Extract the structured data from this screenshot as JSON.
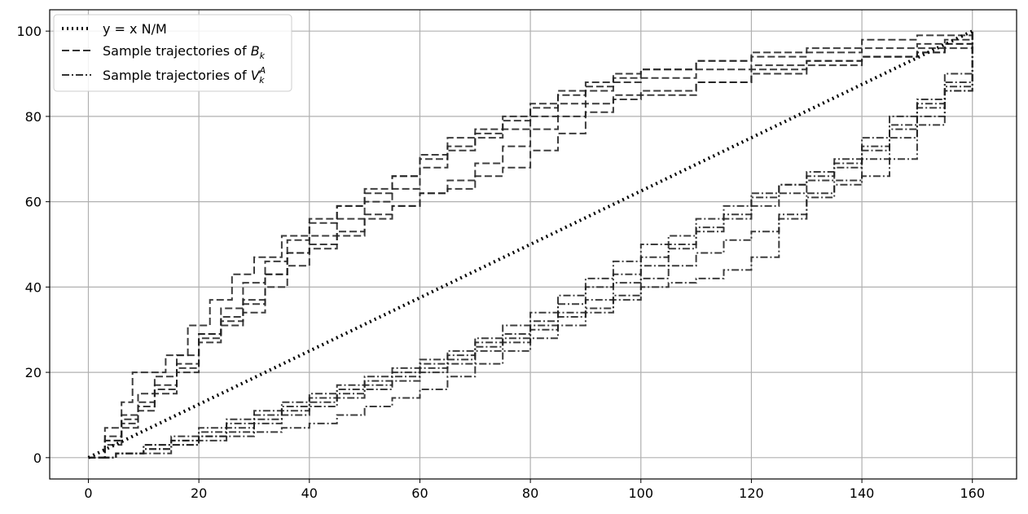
{
  "chart_data": {
    "type": "line",
    "title": "",
    "xlabel": "",
    "ylabel": "",
    "xlim": [
      -7,
      168
    ],
    "ylim": [
      -5,
      105
    ],
    "xticks": [
      0,
      20,
      40,
      60,
      80,
      100,
      120,
      140,
      160
    ],
    "yticks": [
      0,
      20,
      40,
      60,
      80,
      100
    ],
    "grid": true,
    "legend_position": "top-left",
    "line_color": "#000000",
    "grid_color": "#b0b0b0",
    "legend": [
      {
        "label_text": "y = x N/M",
        "style": "dotted"
      },
      {
        "label_text": "Sample trajectories of ",
        "label_math": "B",
        "label_sub": "k",
        "label_sup": "",
        "style": "dashed"
      },
      {
        "label_text": "Sample trajectories of ",
        "label_math": "V",
        "label_sub": "k",
        "label_sup": "A",
        "style": "dashdot"
      }
    ],
    "series": [
      {
        "group": "reference",
        "style": "dotted",
        "x": [
          0,
          160
        ],
        "y": [
          0,
          100
        ]
      },
      {
        "group": "B",
        "style": "dashed",
        "x": [
          0,
          3,
          6,
          8,
          10,
          14,
          18,
          22,
          26,
          30,
          35,
          40,
          45,
          50,
          55,
          60,
          65,
          70,
          75,
          80,
          85,
          90,
          95,
          100,
          110,
          120,
          130,
          140,
          150,
          155,
          160
        ],
        "y": [
          0,
          7,
          13,
          20,
          20,
          24,
          31,
          37,
          43,
          47,
          52,
          55,
          59,
          63,
          66,
          71,
          75,
          77,
          80,
          83,
          86,
          88,
          90,
          91,
          93,
          94,
          95,
          96,
          97,
          98,
          100
        ]
      },
      {
        "group": "B",
        "style": "dashed",
        "x": [
          0,
          3,
          6,
          9,
          12,
          16,
          20,
          24,
          28,
          32,
          36,
          40,
          45,
          50,
          55,
          60,
          65,
          70,
          75,
          80,
          85,
          90,
          95,
          100,
          110,
          120,
          130,
          140,
          150,
          155,
          160
        ],
        "y": [
          0,
          5,
          10,
          15,
          19,
          24,
          29,
          35,
          41,
          46,
          51,
          56,
          59,
          62,
          66,
          70,
          73,
          76,
          79,
          82,
          85,
          87,
          89,
          91,
          93,
          95,
          96,
          98,
          99,
          99,
          100
        ]
      },
      {
        "group": "B",
        "style": "dashed",
        "x": [
          0,
          3,
          6,
          9,
          12,
          16,
          20,
          24,
          28,
          32,
          36,
          40,
          45,
          50,
          55,
          60,
          65,
          70,
          75,
          80,
          85,
          90,
          95,
          100,
          110,
          120,
          130,
          140,
          150,
          155,
          160
        ],
        "y": [
          0,
          4,
          9,
          13,
          17,
          21,
          27,
          32,
          37,
          43,
          48,
          52,
          56,
          60,
          63,
          68,
          72,
          75,
          77,
          80,
          83,
          86,
          88,
          89,
          91,
          92,
          93,
          94,
          95,
          97,
          100
        ]
      },
      {
        "group": "B",
        "style": "dashed",
        "x": [
          0,
          3,
          6,
          9,
          12,
          16,
          20,
          24,
          28,
          32,
          36,
          40,
          45,
          50,
          55,
          60,
          65,
          70,
          75,
          80,
          85,
          90,
          95,
          100,
          110,
          120,
          130,
          140,
          150,
          155,
          160
        ],
        "y": [
          0,
          4,
          8,
          12,
          16,
          22,
          29,
          33,
          36,
          43,
          48,
          50,
          53,
          57,
          59,
          62,
          65,
          69,
          73,
          77,
          80,
          83,
          85,
          86,
          88,
          90,
          92,
          94,
          96,
          97,
          100
        ]
      },
      {
        "group": "B",
        "style": "dashed",
        "x": [
          0,
          3,
          6,
          9,
          12,
          16,
          20,
          24,
          28,
          32,
          36,
          40,
          45,
          50,
          55,
          60,
          65,
          70,
          75,
          80,
          85,
          90,
          95,
          100,
          110,
          120,
          130,
          140,
          150,
          155,
          160
        ],
        "y": [
          0,
          3,
          7,
          11,
          15,
          20,
          28,
          31,
          34,
          40,
          45,
          49,
          52,
          56,
          59,
          62,
          63,
          66,
          68,
          72,
          76,
          81,
          84,
          85,
          88,
          91,
          93,
          94,
          95,
          96,
          100
        ]
      },
      {
        "group": "V",
        "style": "dashdot",
        "x": [
          0,
          5,
          10,
          15,
          20,
          25,
          30,
          35,
          40,
          45,
          50,
          55,
          60,
          65,
          70,
          75,
          80,
          85,
          90,
          95,
          100,
          105,
          110,
          115,
          120,
          125,
          130,
          135,
          140,
          145,
          150,
          155,
          160
        ],
        "y": [
          0,
          1,
          3,
          5,
          7,
          9,
          11,
          13,
          15,
          17,
          19,
          21,
          23,
          25,
          28,
          31,
          34,
          38,
          42,
          46,
          50,
          52,
          56,
          59,
          62,
          64,
          67,
          70,
          75,
          80,
          84,
          90,
          100
        ]
      },
      {
        "group": "V",
        "style": "dashdot",
        "x": [
          0,
          5,
          10,
          15,
          20,
          25,
          30,
          35,
          40,
          45,
          50,
          55,
          60,
          65,
          70,
          75,
          80,
          85,
          90,
          95,
          100,
          105,
          110,
          115,
          120,
          125,
          130,
          135,
          140,
          145,
          150,
          155,
          160
        ],
        "y": [
          0,
          1,
          3,
          4,
          6,
          8,
          10,
          12,
          14,
          16,
          18,
          20,
          22,
          24,
          27,
          29,
          32,
          36,
          40,
          43,
          47,
          50,
          54,
          57,
          61,
          64,
          66,
          69,
          73,
          78,
          83,
          88,
          100
        ]
      },
      {
        "group": "V",
        "style": "dashdot",
        "x": [
          0,
          5,
          10,
          15,
          20,
          25,
          30,
          35,
          40,
          45,
          50,
          55,
          60,
          65,
          70,
          75,
          80,
          85,
          90,
          95,
          100,
          105,
          110,
          115,
          120,
          125,
          130,
          135,
          140,
          145,
          150,
          155,
          160
        ],
        "y": [
          0,
          1,
          2,
          4,
          5,
          7,
          9,
          11,
          13,
          15,
          17,
          19,
          21,
          23,
          26,
          28,
          31,
          34,
          37,
          41,
          45,
          49,
          53,
          56,
          59,
          62,
          65,
          68,
          72,
          77,
          82,
          87,
          100
        ]
      },
      {
        "group": "V",
        "style": "dashdot",
        "x": [
          0,
          5,
          10,
          15,
          20,
          25,
          30,
          35,
          40,
          45,
          50,
          55,
          60,
          65,
          70,
          75,
          80,
          85,
          90,
          95,
          100,
          105,
          110,
          115,
          120,
          125,
          130,
          135,
          140,
          145,
          150,
          155,
          160
        ],
        "y": [
          0,
          1,
          2,
          3,
          5,
          6,
          8,
          10,
          12,
          14,
          16,
          18,
          20,
          22,
          25,
          27,
          30,
          33,
          35,
          38,
          42,
          45,
          48,
          51,
          53,
          57,
          62,
          65,
          70,
          75,
          80,
          86,
          100
        ]
      },
      {
        "group": "V",
        "style": "dashdot",
        "x": [
          0,
          5,
          10,
          15,
          20,
          25,
          30,
          35,
          40,
          45,
          50,
          55,
          60,
          65,
          70,
          75,
          80,
          85,
          90,
          95,
          100,
          105,
          110,
          115,
          120,
          125,
          130,
          135,
          140,
          145,
          150,
          155,
          160
        ],
        "y": [
          0,
          1,
          1,
          3,
          4,
          5,
          6,
          7,
          8,
          10,
          12,
          14,
          16,
          19,
          22,
          25,
          28,
          31,
          34,
          37,
          40,
          41,
          42,
          44,
          47,
          56,
          61,
          64,
          66,
          70,
          78,
          86,
          100
        ]
      }
    ]
  }
}
